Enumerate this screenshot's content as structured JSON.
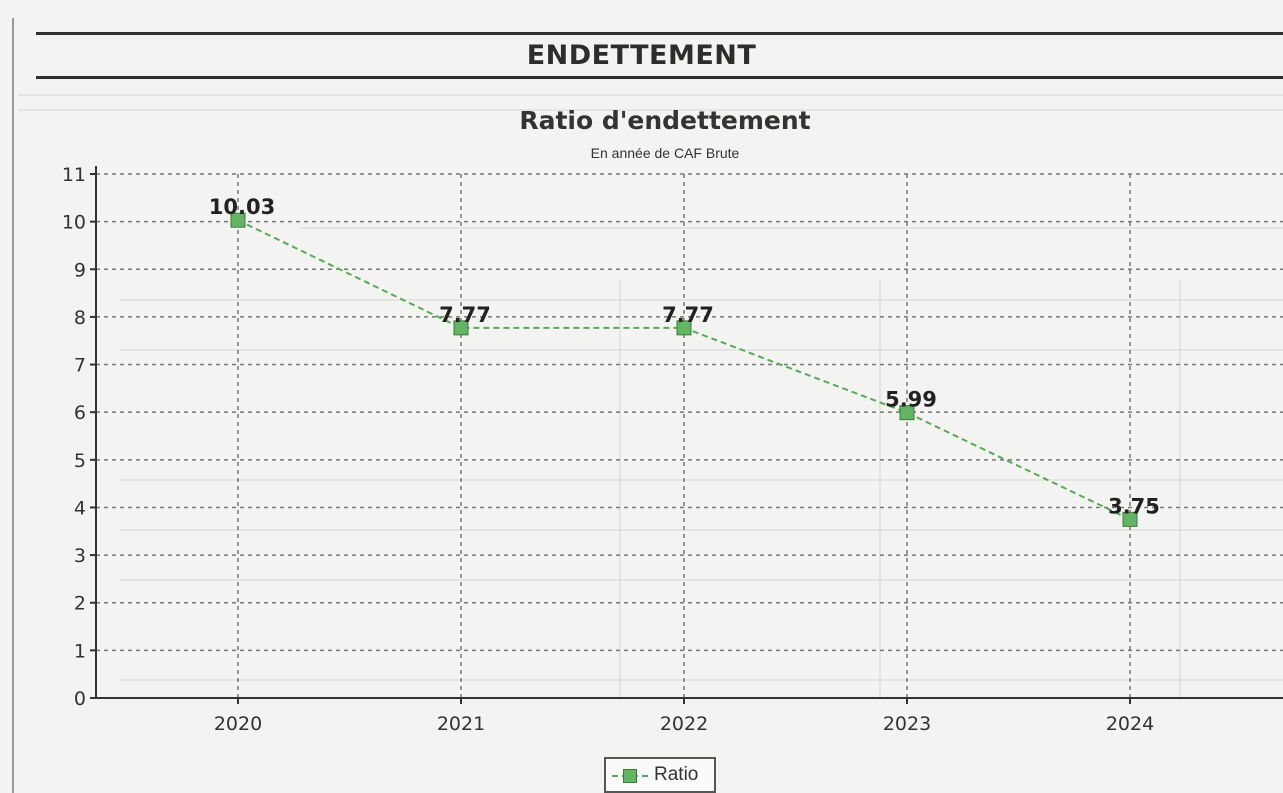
{
  "header": {
    "title": "ENDETTEMENT"
  },
  "chart_data": {
    "type": "line",
    "title": "Ratio d'endettement",
    "subtitle": "En année de CAF Brute",
    "xlabel": "",
    "ylabel": "",
    "categories": [
      "2020",
      "2021",
      "2022",
      "2023",
      "2024"
    ],
    "series": [
      {
        "name": "Ratio",
        "values": [
          10.03,
          7.77,
          7.77,
          5.99,
          3.75
        ],
        "labels": [
          "10.03",
          "7.77",
          "7.77",
          "5.99",
          "3.75"
        ]
      }
    ],
    "ylim": [
      0,
      11
    ],
    "yticks": [
      "0",
      "1",
      "2",
      "3",
      "4",
      "5",
      "6",
      "7",
      "8",
      "9",
      "10",
      "11"
    ],
    "grid": true,
    "legend": "bottom-center",
    "colors": {
      "line": "#5aa85a",
      "marker": "#63b463",
      "marker_border": "#3d7d3d",
      "grid": "#777777"
    }
  }
}
